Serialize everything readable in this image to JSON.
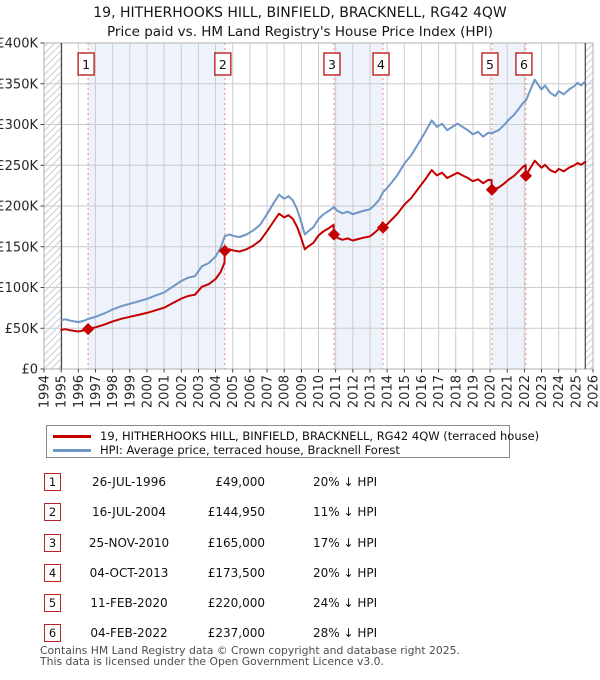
{
  "title": {
    "line1": "19, HITHERHOOKS HILL, BINFIELD, BRACKNELL, RG42 4QW",
    "line2": "Price paid vs. HM Land Registry's House Price Index (HPI)"
  },
  "chart_data": {
    "type": "line",
    "x_axis": {
      "min": 1994,
      "max": 2026,
      "tick_years": [
        1994,
        1995,
        1996,
        1997,
        1998,
        1999,
        2000,
        2001,
        2002,
        2003,
        2004,
        2005,
        2006,
        2007,
        2008,
        2009,
        2010,
        2011,
        2012,
        2013,
        2014,
        2015,
        2016,
        2017,
        2018,
        2019,
        2020,
        2021,
        2022,
        2023,
        2024,
        2025,
        2026
      ]
    },
    "y_axis": {
      "min": 0,
      "max": 400000,
      "ticks": [
        {
          "value": 0,
          "label": "£0"
        },
        {
          "value": 50000,
          "label": "£50K"
        },
        {
          "value": 100000,
          "label": "£100K"
        },
        {
          "value": 150000,
          "label": "£150K"
        },
        {
          "value": 200000,
          "label": "£200K"
        },
        {
          "value": 250000,
          "label": "£250K"
        },
        {
          "value": 300000,
          "label": "£300K"
        },
        {
          "value": 350000,
          "label": "£350K"
        },
        {
          "value": 400000,
          "label": "£400K"
        }
      ]
    },
    "colors": {
      "price_line": "#c40000",
      "hpi_line": "#6f96c6",
      "sale_dash": "#ee8888",
      "band": "#eef2fb",
      "grid": "#cccccc",
      "frame": "#b0b0b0",
      "hatch": "#c9ced6",
      "data_edge": "#444444",
      "marker_border": "#bb2222"
    },
    "series": [
      {
        "name": "19, HITHERHOOKS HILL, BINFIELD, BRACKNELL, RG42 4QW (terraced house)",
        "color": "#c40000",
        "points": [
          [
            1995.0,
            48000
          ],
          [
            1995.25,
            48800
          ],
          [
            1995.5,
            47600
          ],
          [
            1995.75,
            46800
          ],
          [
            1996.0,
            46000
          ],
          [
            1996.3,
            47200
          ],
          [
            1996.57,
            49000
          ],
          [
            1997.0,
            51200
          ],
          [
            1997.5,
            54400
          ],
          [
            1998.0,
            58400
          ],
          [
            1998.5,
            61600
          ],
          [
            1999.0,
            64000
          ],
          [
            1999.5,
            66400
          ],
          [
            2000.0,
            68800
          ],
          [
            2000.5,
            72000
          ],
          [
            2001.0,
            75200
          ],
          [
            2001.5,
            80800
          ],
          [
            2002.0,
            86400
          ],
          [
            2002.4,
            89600
          ],
          [
            2002.8,
            91200
          ],
          [
            2003.2,
            100800
          ],
          [
            2003.6,
            104000
          ],
          [
            2004.0,
            110400
          ],
          [
            2004.3,
            119200
          ],
          [
            2004.52,
            130400
          ],
          [
            2004.54,
            144950
          ],
          [
            2004.8,
            146900
          ],
          [
            2005.1,
            145100
          ],
          [
            2005.4,
            144200
          ],
          [
            2005.8,
            146900
          ],
          [
            2006.2,
            151300
          ],
          [
            2006.6,
            157500
          ],
          [
            2007.0,
            169100
          ],
          [
            2007.4,
            181600
          ],
          [
            2007.7,
            190500
          ],
          [
            2008.0,
            186000
          ],
          [
            2008.25,
            188700
          ],
          [
            2008.5,
            184200
          ],
          [
            2008.75,
            174400
          ],
          [
            2009.0,
            160200
          ],
          [
            2009.2,
            146900
          ],
          [
            2009.4,
            150400
          ],
          [
            2009.7,
            154900
          ],
          [
            2010.0,
            163800
          ],
          [
            2010.3,
            169100
          ],
          [
            2010.6,
            172700
          ],
          [
            2010.88,
            176900
          ],
          [
            2010.9,
            165000
          ],
          [
            2011.1,
            161000
          ],
          [
            2011.4,
            158500
          ],
          [
            2011.7,
            160200
          ],
          [
            2012.0,
            157700
          ],
          [
            2012.3,
            159400
          ],
          [
            2012.6,
            161000
          ],
          [
            2013.0,
            162700
          ],
          [
            2013.3,
            167700
          ],
          [
            2013.55,
            172600
          ],
          [
            2013.74,
            180000
          ],
          [
            2013.76,
            173500
          ],
          [
            2014.0,
            177600
          ],
          [
            2014.3,
            184000
          ],
          [
            2014.6,
            190400
          ],
          [
            2015.0,
            201600
          ],
          [
            2015.4,
            209600
          ],
          [
            2015.8,
            220800
          ],
          [
            2016.2,
            232000
          ],
          [
            2016.6,
            244000
          ],
          [
            2016.9,
            237600
          ],
          [
            2017.2,
            240800
          ],
          [
            2017.5,
            234400
          ],
          [
            2017.8,
            237600
          ],
          [
            2018.1,
            240800
          ],
          [
            2018.4,
            237600
          ],
          [
            2018.7,
            234400
          ],
          [
            2019.0,
            230400
          ],
          [
            2019.3,
            232800
          ],
          [
            2019.6,
            228000
          ],
          [
            2019.9,
            232000
          ],
          [
            2020.09,
            231600
          ],
          [
            2020.11,
            220000
          ],
          [
            2020.5,
            222700
          ],
          [
            2020.8,
            227200
          ],
          [
            2021.1,
            232600
          ],
          [
            2021.4,
            237100
          ],
          [
            2021.7,
            243200
          ],
          [
            2021.9,
            247800
          ],
          [
            2022.07,
            250200
          ],
          [
            2022.09,
            237000
          ],
          [
            2022.3,
            244800
          ],
          [
            2022.6,
            255600
          ],
          [
            2022.8,
            251300
          ],
          [
            2023.0,
            247000
          ],
          [
            2023.2,
            250600
          ],
          [
            2023.5,
            244100
          ],
          [
            2023.8,
            241200
          ],
          [
            2024.0,
            245500
          ],
          [
            2024.3,
            242600
          ],
          [
            2024.6,
            247000
          ],
          [
            2024.9,
            249800
          ],
          [
            2025.1,
            252700
          ],
          [
            2025.3,
            250600
          ],
          [
            2025.55,
            254200
          ]
        ]
      },
      {
        "name": "HPI: Average price, terraced house, Bracknell Forest",
        "color": "#6f96c6",
        "points": [
          [
            1995.0,
            60000
          ],
          [
            1995.25,
            61000
          ],
          [
            1995.5,
            59500
          ],
          [
            1995.75,
            58500
          ],
          [
            1996.0,
            57500
          ],
          [
            1996.3,
            59000
          ],
          [
            1996.57,
            61300
          ],
          [
            1997.0,
            64000
          ],
          [
            1997.5,
            68000
          ],
          [
            1998.0,
            73000
          ],
          [
            1998.5,
            77000
          ],
          [
            1999.0,
            80000
          ],
          [
            1999.5,
            83000
          ],
          [
            2000.0,
            86000
          ],
          [
            2000.5,
            90000
          ],
          [
            2001.0,
            94000
          ],
          [
            2001.5,
            101000
          ],
          [
            2002.0,
            108000
          ],
          [
            2002.4,
            112000
          ],
          [
            2002.8,
            114000
          ],
          [
            2003.2,
            126000
          ],
          [
            2003.6,
            130000
          ],
          [
            2004.0,
            138000
          ],
          [
            2004.3,
            149000
          ],
          [
            2004.54,
            163000
          ],
          [
            2004.8,
            165000
          ],
          [
            2005.1,
            163000
          ],
          [
            2005.4,
            162000
          ],
          [
            2005.8,
            165000
          ],
          [
            2006.2,
            170000
          ],
          [
            2006.6,
            177000
          ],
          [
            2007.0,
            190000
          ],
          [
            2007.4,
            204000
          ],
          [
            2007.7,
            214000
          ],
          [
            2008.0,
            209000
          ],
          [
            2008.25,
            212000
          ],
          [
            2008.5,
            207000
          ],
          [
            2008.75,
            196000
          ],
          [
            2009.0,
            180000
          ],
          [
            2009.2,
            165000
          ],
          [
            2009.4,
            169000
          ],
          [
            2009.7,
            174000
          ],
          [
            2010.0,
            184000
          ],
          [
            2010.3,
            190000
          ],
          [
            2010.6,
            194000
          ],
          [
            2010.9,
            198800
          ],
          [
            2011.1,
            194000
          ],
          [
            2011.4,
            191000
          ],
          [
            2011.7,
            193000
          ],
          [
            2012.0,
            190000
          ],
          [
            2012.3,
            192000
          ],
          [
            2012.6,
            194000
          ],
          [
            2013.0,
            196000
          ],
          [
            2013.3,
            202000
          ],
          [
            2013.55,
            208000
          ],
          [
            2013.76,
            216900
          ],
          [
            2014.0,
            222000
          ],
          [
            2014.3,
            230000
          ],
          [
            2014.6,
            238000
          ],
          [
            2015.0,
            252000
          ],
          [
            2015.4,
            262000
          ],
          [
            2015.8,
            276000
          ],
          [
            2016.2,
            290000
          ],
          [
            2016.6,
            305000
          ],
          [
            2016.9,
            297000
          ],
          [
            2017.2,
            301000
          ],
          [
            2017.5,
            293000
          ],
          [
            2017.8,
            297000
          ],
          [
            2018.1,
            301000
          ],
          [
            2018.4,
            297000
          ],
          [
            2018.7,
            293000
          ],
          [
            2019.0,
            288000
          ],
          [
            2019.3,
            291000
          ],
          [
            2019.6,
            285000
          ],
          [
            2019.9,
            290000
          ],
          [
            2020.11,
            289500
          ],
          [
            2020.5,
            293000
          ],
          [
            2020.8,
            299000
          ],
          [
            2021.1,
            306000
          ],
          [
            2021.4,
            312000
          ],
          [
            2021.7,
            320000
          ],
          [
            2021.9,
            326000
          ],
          [
            2022.09,
            329200
          ],
          [
            2022.3,
            340000
          ],
          [
            2022.6,
            355000
          ],
          [
            2022.8,
            349000
          ],
          [
            2023.0,
            343000
          ],
          [
            2023.2,
            348000
          ],
          [
            2023.5,
            339000
          ],
          [
            2023.8,
            335000
          ],
          [
            2024.0,
            341000
          ],
          [
            2024.3,
            337000
          ],
          [
            2024.6,
            343000
          ],
          [
            2024.9,
            347000
          ],
          [
            2025.1,
            351000
          ],
          [
            2025.3,
            348000
          ],
          [
            2025.55,
            353000
          ]
        ]
      }
    ],
    "sales": [
      {
        "n": "1",
        "year": 1996.57,
        "price": 49000
      },
      {
        "n": "2",
        "year": 2004.54,
        "price": 144950
      },
      {
        "n": "3",
        "year": 2010.9,
        "price": 165000
      },
      {
        "n": "4",
        "year": 2013.76,
        "price": 173500
      },
      {
        "n": "5",
        "year": 2020.11,
        "price": 220000
      },
      {
        "n": "6",
        "year": 2022.09,
        "price": 237000
      }
    ],
    "shaded_periods": [
      [
        1996.57,
        2004.54
      ],
      [
        2010.9,
        2013.76
      ],
      [
        2020.11,
        2022.09
      ]
    ],
    "no_data": [
      [
        1994,
        1995.02
      ],
      [
        2025.55,
        2026
      ]
    ]
  },
  "legend": {
    "items": [
      {
        "label": "19, HITHERHOOKS HILL, BINFIELD, BRACKNELL, RG42 4QW (terraced house)",
        "color": "#c40000"
      },
      {
        "label": "HPI: Average price, terraced house, Bracknell Forest",
        "color": "#6f96c6"
      }
    ]
  },
  "table": {
    "rows": [
      {
        "n": "1",
        "date": "26-JUL-1996",
        "price": "£49,000",
        "hpi": "20% ↓ HPI"
      },
      {
        "n": "2",
        "date": "16-JUL-2004",
        "price": "£144,950",
        "hpi": "11% ↓ HPI"
      },
      {
        "n": "3",
        "date": "25-NOV-2010",
        "price": "£165,000",
        "hpi": "17% ↓ HPI"
      },
      {
        "n": "4",
        "date": "04-OCT-2013",
        "price": "£173,500",
        "hpi": "20% ↓ HPI"
      },
      {
        "n": "5",
        "date": "11-FEB-2020",
        "price": "£220,000",
        "hpi": "24% ↓ HPI"
      },
      {
        "n": "6",
        "date": "04-FEB-2022",
        "price": "£237,000",
        "hpi": "28% ↓ HPI"
      }
    ]
  },
  "footer": {
    "line1": "Contains HM Land Registry data © Crown copyright and database right 2025.",
    "line2": "This data is licensed under the Open Government Licence v3.0."
  }
}
